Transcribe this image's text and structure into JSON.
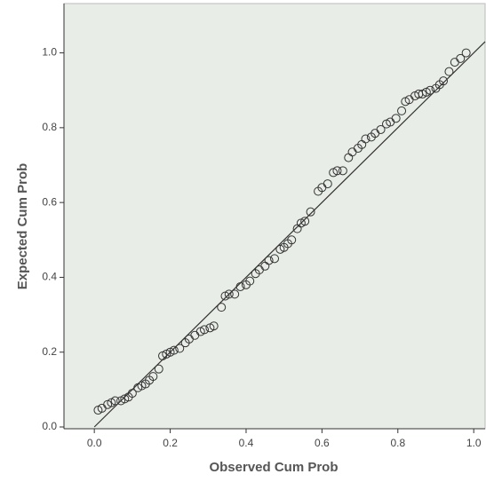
{
  "chart_data": {
    "type": "scatter",
    "x_label": "Observed Cum Prob",
    "y_label": "Expected Cum Prob",
    "xlim": [
      -0.08,
      1.03
    ],
    "ylim": [
      0,
      1.12
    ],
    "xticks": [
      {
        "value": 0,
        "label": "0.0"
      },
      0.2,
      0.4,
      0.6,
      0.8,
      {
        "value": 1,
        "label": "1.0"
      }
    ],
    "yticks": [
      {
        "value": 0,
        "label": "0.0"
      },
      0.2,
      0.4,
      0.6,
      0.8,
      {
        "value": 1,
        "label": "1.0"
      }
    ],
    "color": "#333333",
    "x": [
      0.01,
      0.02,
      0.035,
      0.045,
      0.055,
      0.07,
      0.08,
      0.09,
      0.1,
      0.115,
      0.125,
      0.135,
      0.145,
      0.155,
      0.17,
      0.18,
      0.19,
      0.2,
      0.21,
      0.225,
      0.24,
      0.25,
      0.265,
      0.28,
      0.29,
      0.305,
      0.315,
      0.335,
      0.345,
      0.355,
      0.37,
      0.385,
      0.4,
      0.41,
      0.425,
      0.435,
      0.45,
      0.46,
      0.475,
      0.49,
      0.5,
      0.51,
      0.52,
      0.535,
      0.545,
      0.555,
      0.57,
      0.59,
      0.6,
      0.615,
      0.63,
      0.64,
      0.655,
      0.67,
      0.68,
      0.695,
      0.705,
      0.715,
      0.73,
      0.74,
      0.755,
      0.77,
      0.78,
      0.795,
      0.81,
      0.82,
      0.83,
      0.845,
      0.855,
      0.865,
      0.875,
      0.885,
      0.9,
      0.91,
      0.92,
      0.935,
      0.95,
      0.965,
      0.98
    ],
    "values": [
      0.045,
      0.05,
      0.06,
      0.065,
      0.07,
      0.07,
      0.075,
      0.08,
      0.09,
      0.105,
      0.11,
      0.115,
      0.125,
      0.135,
      0.155,
      0.19,
      0.195,
      0.2,
      0.205,
      0.21,
      0.225,
      0.235,
      0.245,
      0.255,
      0.26,
      0.265,
      0.27,
      0.32,
      0.35,
      0.355,
      0.355,
      0.375,
      0.38,
      0.39,
      0.41,
      0.42,
      0.43,
      0.445,
      0.45,
      0.475,
      0.48,
      0.49,
      0.5,
      0.53,
      0.545,
      0.55,
      0.575,
      0.63,
      0.64,
      0.65,
      0.68,
      0.685,
      0.685,
      0.72,
      0.735,
      0.745,
      0.755,
      0.77,
      0.775,
      0.785,
      0.795,
      0.81,
      0.815,
      0.825,
      0.845,
      0.87,
      0.875,
      0.885,
      0.89,
      0.89,
      0.895,
      0.9,
      0.905,
      0.915,
      0.925,
      0.95,
      0.975,
      0.985,
      1.0
    ]
  }
}
